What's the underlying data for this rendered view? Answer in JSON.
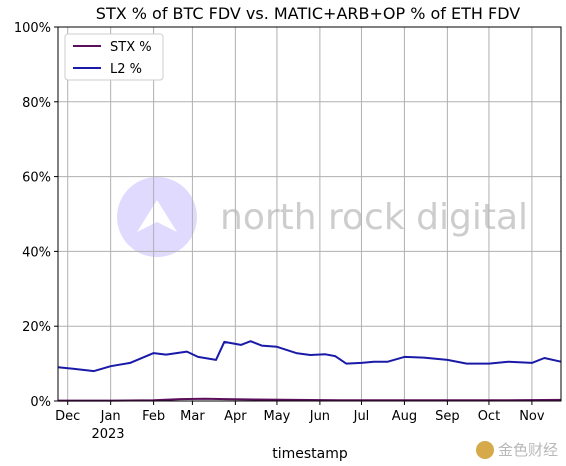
{
  "chart_data": {
    "type": "line",
    "title": "STX % of BTC FDV vs. MATIC+ARB+OP % of ETH FDV",
    "xlabel": "timestamp",
    "ylabel": "",
    "x_ticks": [
      "Dec",
      "Jan",
      "Feb",
      "Mar",
      "Apr",
      "May",
      "Jun",
      "Jul",
      "Aug",
      "Sep",
      "Oct",
      "Nov"
    ],
    "x_year_label": "2023",
    "x_range": [
      "2022-11-24",
      "2023-11-22"
    ],
    "y_ticks": [
      "0%",
      "20%",
      "40%",
      "60%",
      "80%",
      "100%"
    ],
    "ylim": [
      0,
      100
    ],
    "grid": true,
    "legend_position": "top-left",
    "series": [
      {
        "name": "STX %",
        "color": "#5b0f5b",
        "x": [
          "2022-11-24",
          "2023-01-01",
          "2023-02-01",
          "2023-02-20",
          "2023-03-10",
          "2023-03-25",
          "2023-04-15",
          "2023-05-15",
          "2023-06-15",
          "2023-07-15",
          "2023-08-15",
          "2023-09-15",
          "2023-10-15",
          "2023-11-22"
        ],
        "y": [
          0.1,
          0.1,
          0.2,
          0.5,
          0.6,
          0.5,
          0.4,
          0.3,
          0.2,
          0.2,
          0.2,
          0.2,
          0.2,
          0.3
        ]
      },
      {
        "name": "L2 %",
        "color": "#1a1aa8",
        "x": [
          "2022-11-24",
          "2022-12-05",
          "2022-12-20",
          "2023-01-01",
          "2023-01-15",
          "2023-02-01",
          "2023-02-10",
          "2023-02-25",
          "2023-03-05",
          "2023-03-18",
          "2023-03-24",
          "2023-04-05",
          "2023-04-12",
          "2023-04-20",
          "2023-05-01",
          "2023-05-15",
          "2023-05-25",
          "2023-06-05",
          "2023-06-12",
          "2023-06-20",
          "2023-07-01",
          "2023-07-10",
          "2023-07-20",
          "2023-08-01",
          "2023-08-15",
          "2023-09-01",
          "2023-09-15",
          "2023-10-01",
          "2023-10-15",
          "2023-11-01",
          "2023-11-10",
          "2023-11-22"
        ],
        "y": [
          9.0,
          8.6,
          8.0,
          9.3,
          10.2,
          12.8,
          12.4,
          13.2,
          11.8,
          11.0,
          15.8,
          15.0,
          16.0,
          14.8,
          14.5,
          12.8,
          12.3,
          12.5,
          12.0,
          10.0,
          10.2,
          10.5,
          10.5,
          11.8,
          11.6,
          11.0,
          10.0,
          10.0,
          10.5,
          10.2,
          11.5,
          10.5
        ]
      }
    ]
  },
  "watermark": {
    "text": "north rock digital",
    "circle_color": "#ddd6ff"
  },
  "corner_logo": {
    "text": "金色财经",
    "icon": "coin-icon"
  }
}
